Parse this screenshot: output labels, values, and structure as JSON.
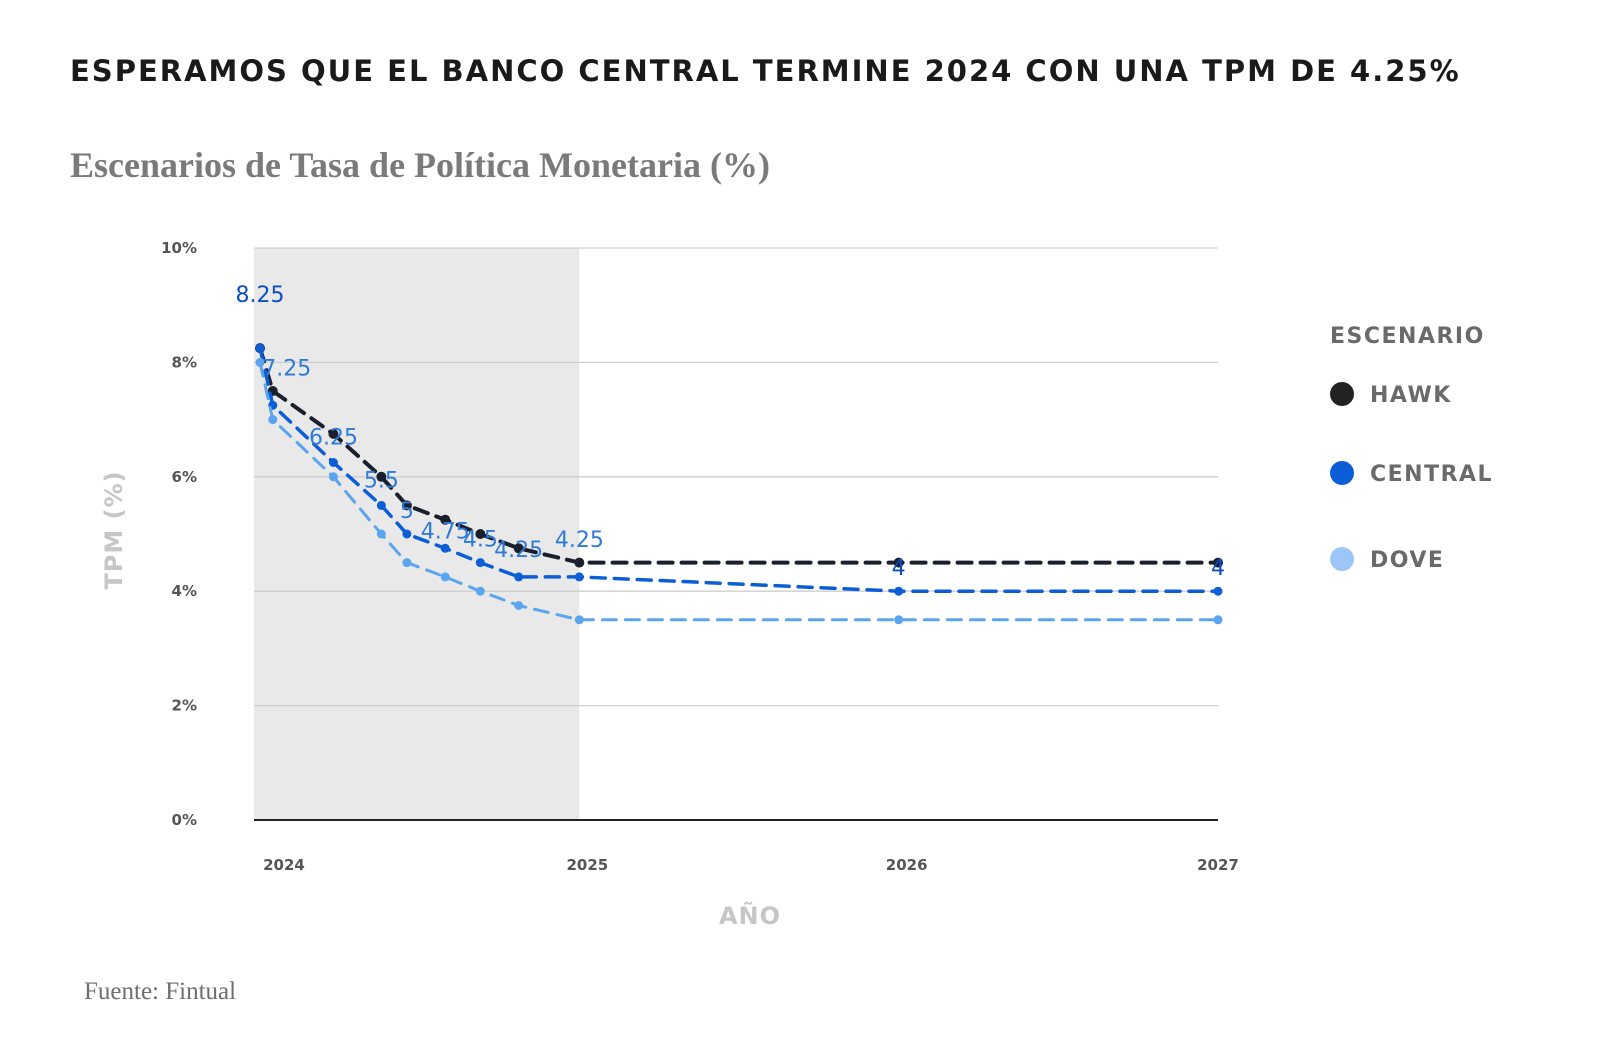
{
  "title": "ESPERAMOS QUE EL BANCO CENTRAL TERMINE 2024 CON UNA TPM DE 4.25%",
  "subtitle": "Escenarios de Tasa de Política Monetaria (%)",
  "source": "Fuente: Fintual",
  "chart_data": {
    "type": "line",
    "xlabel": "AÑO",
    "ylabel": "TPM (%)",
    "ylim": [
      0,
      10
    ],
    "xlim": [
      2024,
      2027
    ],
    "y_ticks": [
      "0%",
      "2%",
      "4%",
      "6%",
      "8%",
      "10%"
    ],
    "x_ticks": [
      "2024",
      "2025",
      "2026",
      "2027"
    ],
    "grid": true,
    "shaded_region": {
      "x_from": 2024,
      "x_to": 2025,
      "color": "#e9e9e9"
    },
    "legend": {
      "title": "ESCENARIO",
      "placement": "right"
    },
    "series": [
      {
        "name": "HAWK",
        "color": "#1a1f2e",
        "x": [
          2024.0,
          2024.04,
          2024.23,
          2024.38,
          2024.46,
          2024.58,
          2024.69,
          2024.81,
          2025.0,
          2026.0,
          2027.0
        ],
        "y": [
          8.25,
          7.5,
          6.75,
          6.0,
          5.5,
          5.25,
          5.0,
          4.75,
          4.5,
          4.5,
          4.5
        ]
      },
      {
        "name": "CENTRAL",
        "color": "#0b5ed7",
        "x": [
          2024.0,
          2024.04,
          2024.23,
          2024.38,
          2024.46,
          2024.58,
          2024.69,
          2024.81,
          2025.0,
          2026.0,
          2027.0
        ],
        "y": [
          8.25,
          7.25,
          6.25,
          5.5,
          5.0,
          4.75,
          4.5,
          4.25,
          4.25,
          4.0,
          4.0
        ],
        "labels": [
          "8.25",
          "7.25",
          "6.25",
          "5.5",
          "5",
          "4.75",
          "4.5",
          "4.25",
          "4.25",
          "4",
          "4"
        ]
      },
      {
        "name": "DOVE",
        "color": "#5aa5ee",
        "x": [
          2024.0,
          2024.04,
          2024.23,
          2024.38,
          2024.46,
          2024.58,
          2024.69,
          2024.81,
          2025.0,
          2026.0,
          2027.0
        ],
        "y": [
          8.0,
          7.0,
          6.0,
          5.0,
          4.5,
          4.25,
          4.0,
          3.75,
          3.5,
          3.5,
          3.5
        ]
      }
    ],
    "legend_colors": [
      "#222222",
      "#0b5ed7",
      "#9cc6f7"
    ]
  }
}
